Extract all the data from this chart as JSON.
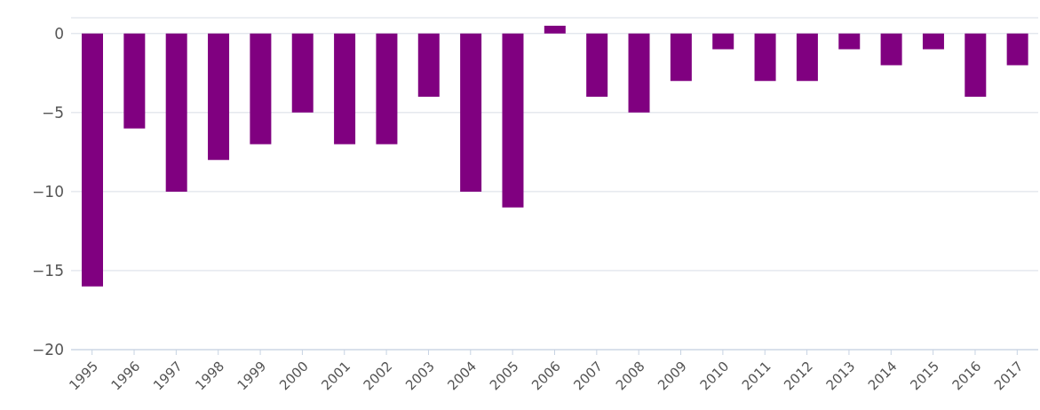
{
  "chart_data": {
    "type": "bar",
    "categories": [
      "1995",
      "1996",
      "1997",
      "1998",
      "1999",
      "2000",
      "2001",
      "2002",
      "2003",
      "2004",
      "2005",
      "2006",
      "2007",
      "2008",
      "2009",
      "2010",
      "2011",
      "2012",
      "2013",
      "2014",
      "2015",
      "2016",
      "2017"
    ],
    "values": [
      -16,
      -6,
      -10,
      -8,
      -7,
      -5,
      -7,
      -7,
      -4,
      -10,
      -11,
      0.5,
      -4,
      -5,
      -3,
      -1,
      -3,
      -3,
      -1,
      -2,
      -1,
      -4,
      -2
    ],
    "color": "#800080",
    "ylim": [
      -20,
      1
    ],
    "yticks": [
      -20,
      -15,
      -10,
      -5,
      0
    ],
    "grid": "y"
  }
}
